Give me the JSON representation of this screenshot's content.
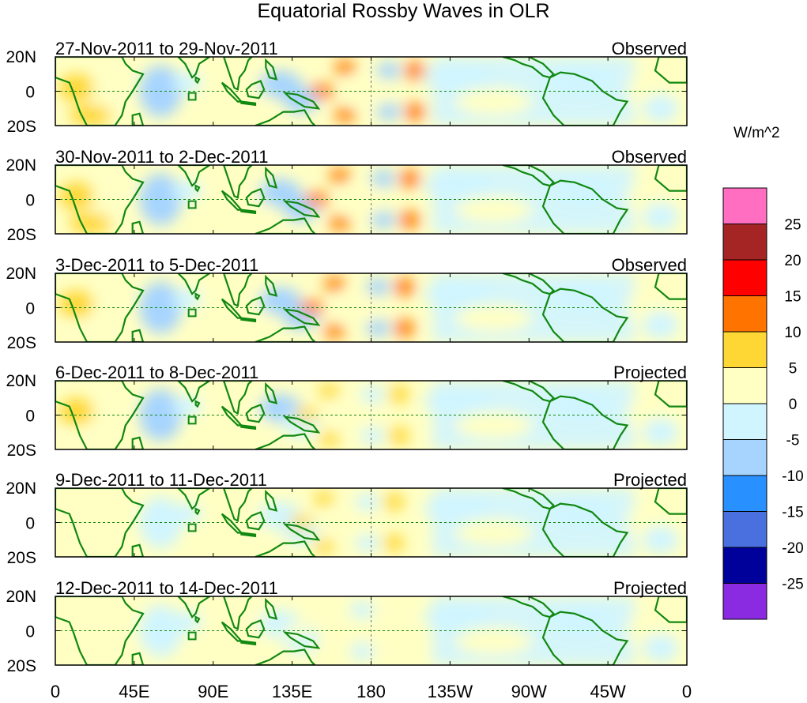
{
  "figure": {
    "title": "Equatorial Rossby Waves in OLR",
    "units_label": "W/m^2",
    "x_ticks": [
      "0",
      "45E",
      "90E",
      "135E",
      "180",
      "135W",
      "90W",
      "45W",
      "0"
    ],
    "y_ticks": [
      "20N",
      "0",
      "20S"
    ]
  },
  "panels": [
    {
      "date_range": "27-Nov-2011 to 29-Nov-2011",
      "kind": "Observed",
      "intensity": 1.0,
      "west_shift": 0
    },
    {
      "date_range": "30-Nov-2011 to 2-Dec-2011",
      "kind": "Observed",
      "intensity": 1.0,
      "west_shift": 10
    },
    {
      "date_range": "3-Dec-2011 to 5-Dec-2011",
      "kind": "Observed",
      "intensity": 0.95,
      "west_shift": 20
    },
    {
      "date_range": "6-Dec-2011 to 8-Dec-2011",
      "kind": "Projected",
      "intensity": 0.8,
      "west_shift": 30
    },
    {
      "date_range": "9-Dec-2011 to 11-Dec-2011",
      "kind": "Projected",
      "intensity": 0.55,
      "west_shift": 40
    },
    {
      "date_range": "12-Dec-2011 to 14-Dec-2011",
      "kind": "Projected",
      "intensity": 0.35,
      "west_shift": 50
    }
  ],
  "colorbar": {
    "colors": [
      "#ff6ec0",
      "#a52525",
      "#ff0000",
      "#ff7400",
      "#ffd735",
      "#ffffc4",
      "#d0f5ff",
      "#a6d4ff",
      "#2890ff",
      "#4a70e0",
      "#00009a",
      "#8a2be2"
    ],
    "labels": [
      "25",
      "20",
      "15",
      "10",
      "5",
      "0",
      "-5",
      "-10",
      "-15",
      "-20",
      "-25"
    ]
  },
  "map_colors": {
    "land": "#118811",
    "equator": "#118811"
  }
}
